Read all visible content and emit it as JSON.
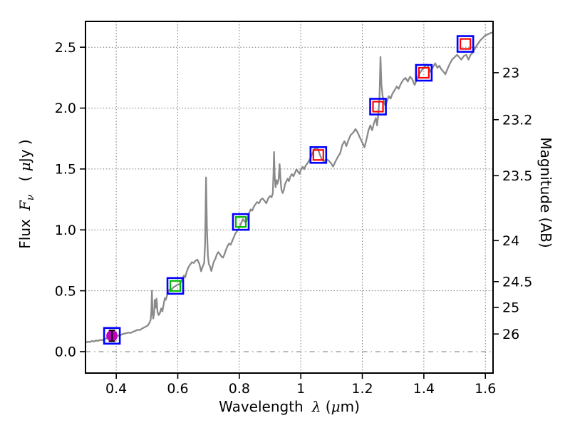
{
  "figure": {
    "background": "#ffffff"
  },
  "axes": {
    "xlabel": {
      "prefix": "Wavelength",
      "symbol": "λ",
      "unit_open": "(",
      "unit_mu": "μ",
      "unit_close": "m)"
    },
    "ylabel": {
      "prefix": "Flux",
      "symbol": "F",
      "subscript": "ν",
      "unit_open": "( ",
      "unit_mu": "μ",
      "unit_close": "Jy )"
    },
    "ylabel_right": "Magnitude (AB)",
    "x_ticks": [
      {
        "value": 0.4,
        "label": "0.4"
      },
      {
        "value": 0.6,
        "label": "0.6"
      },
      {
        "value": 0.8,
        "label": "0.8"
      },
      {
        "value": 1.0,
        "label": "1"
      },
      {
        "value": 1.2,
        "label": "1.2"
      },
      {
        "value": 1.4,
        "label": "1.4"
      },
      {
        "value": 1.6,
        "label": "1.6"
      }
    ],
    "y_ticks": [
      {
        "value": 0.0,
        "label": "0.0"
      },
      {
        "value": 0.5,
        "label": "0.5"
      },
      {
        "value": 1.0,
        "label": "1.0"
      },
      {
        "value": 1.5,
        "label": "1.5"
      },
      {
        "value": 2.0,
        "label": "2.0"
      },
      {
        "value": 2.5,
        "label": "2.5"
      }
    ],
    "right_ticks": [
      {
        "label": "23",
        "flux": 2.291
      },
      {
        "label": "23.2",
        "flux": 1.905
      },
      {
        "label": "23.5",
        "flux": 1.445
      },
      {
        "label": "24",
        "flux": 0.912
      },
      {
        "label": "24.5",
        "flux": 0.575
      },
      {
        "label": "25",
        "flux": 0.363
      },
      {
        "label": "26",
        "flux": 0.145
      }
    ]
  },
  "colors": {
    "spectrum": "#8a8a8a",
    "outer_square": "#0000ff",
    "green_marker": "#00bb00",
    "red_marker": "#ff0000",
    "magenta_marker": "#bb00bb",
    "errorbar": "#000000",
    "grid": "#777777",
    "frame": "#000000"
  },
  "chart_data": {
    "type": "line+scatter",
    "title": "",
    "xlabel": "Wavelength λ (μm)",
    "ylabel": "Flux Fν ( μJy )",
    "ylabel_right": "Magnitude (AB)",
    "xlim": [
      0.3,
      1.625
    ],
    "ylim": [
      -0.176,
      2.712
    ],
    "grid": "dotted",
    "zero_line_style": "dash-dot",
    "series": [
      {
        "name": "model-spectrum",
        "type": "line",
        "color": "#8a8a8a",
        "points": [
          [
            0.3,
            0.075
          ],
          [
            0.308,
            0.082
          ],
          [
            0.314,
            0.078
          ],
          [
            0.321,
            0.088
          ],
          [
            0.327,
            0.083
          ],
          [
            0.334,
            0.092
          ],
          [
            0.34,
            0.088
          ],
          [
            0.348,
            0.097
          ],
          [
            0.355,
            0.094
          ],
          [
            0.362,
            0.104
          ],
          [
            0.37,
            0.11
          ],
          [
            0.378,
            0.117
          ],
          [
            0.385,
            0.124
          ],
          [
            0.392,
            0.13
          ],
          [
            0.398,
            0.137
          ],
          [
            0.404,
            0.134
          ],
          [
            0.41,
            0.129
          ],
          [
            0.417,
            0.141
          ],
          [
            0.424,
            0.147
          ],
          [
            0.432,
            0.151
          ],
          [
            0.44,
            0.157
          ],
          [
            0.447,
            0.154
          ],
          [
            0.455,
            0.164
          ],
          [
            0.462,
            0.171
          ],
          [
            0.47,
            0.18
          ],
          [
            0.477,
            0.177
          ],
          [
            0.484,
            0.19
          ],
          [
            0.491,
            0.199
          ],
          [
            0.497,
            0.207
          ],
          [
            0.503,
            0.216
          ],
          [
            0.508,
            0.238
          ],
          [
            0.512,
            0.262
          ],
          [
            0.514,
            0.33
          ],
          [
            0.516,
            0.5
          ],
          [
            0.518,
            0.33
          ],
          [
            0.52,
            0.272
          ],
          [
            0.523,
            0.31
          ],
          [
            0.525,
            0.425
          ],
          [
            0.528,
            0.36
          ],
          [
            0.531,
            0.435
          ],
          [
            0.534,
            0.33
          ],
          [
            0.538,
            0.3
          ],
          [
            0.542,
            0.318
          ],
          [
            0.546,
            0.355
          ],
          [
            0.55,
            0.33
          ],
          [
            0.554,
            0.39
          ],
          [
            0.558,
            0.44
          ],
          [
            0.561,
            0.425
          ],
          [
            0.565,
            0.46
          ],
          [
            0.569,
            0.49
          ],
          [
            0.573,
            0.51
          ],
          [
            0.577,
            0.498
          ],
          [
            0.581,
            0.515
          ],
          [
            0.586,
            0.528
          ],
          [
            0.592,
            0.538
          ],
          [
            0.598,
            0.548
          ],
          [
            0.604,
            0.553
          ],
          [
            0.61,
            0.57
          ],
          [
            0.615,
            0.6
          ],
          [
            0.62,
            0.625
          ],
          [
            0.624,
            0.61
          ],
          [
            0.629,
            0.655
          ],
          [
            0.634,
            0.69
          ],
          [
            0.64,
            0.715
          ],
          [
            0.646,
            0.735
          ],
          [
            0.652,
            0.728
          ],
          [
            0.658,
            0.748
          ],
          [
            0.664,
            0.755
          ],
          [
            0.67,
            0.722
          ],
          [
            0.676,
            0.66
          ],
          [
            0.681,
            0.7
          ],
          [
            0.686,
            0.73
          ],
          [
            0.689,
            0.9
          ],
          [
            0.692,
            1.43
          ],
          [
            0.695,
            1.0
          ],
          [
            0.698,
            0.79
          ],
          [
            0.701,
            0.72
          ],
          [
            0.705,
            0.7
          ],
          [
            0.709,
            0.662
          ],
          [
            0.713,
            0.7
          ],
          [
            0.717,
            0.738
          ],
          [
            0.722,
            0.76
          ],
          [
            0.727,
            0.798
          ],
          [
            0.732,
            0.818
          ],
          [
            0.737,
            0.8
          ],
          [
            0.742,
            0.782
          ],
          [
            0.747,
            0.772
          ],
          [
            0.752,
            0.8
          ],
          [
            0.757,
            0.838
          ],
          [
            0.762,
            0.868
          ],
          [
            0.767,
            0.888
          ],
          [
            0.772,
            0.878
          ],
          [
            0.777,
            0.908
          ],
          [
            0.782,
            0.938
          ],
          [
            0.787,
            0.968
          ],
          [
            0.792,
            0.988
          ],
          [
            0.797,
            1.0
          ],
          [
            0.802,
            1.03
          ],
          [
            0.807,
            1.062
          ],
          [
            0.812,
            1.088
          ],
          [
            0.817,
            1.07
          ],
          [
            0.822,
            1.06
          ],
          [
            0.827,
            1.1
          ],
          [
            0.832,
            1.14
          ],
          [
            0.837,
            1.168
          ],
          [
            0.842,
            1.158
          ],
          [
            0.847,
            1.188
          ],
          [
            0.852,
            1.208
          ],
          [
            0.858,
            1.228
          ],
          [
            0.864,
            1.218
          ],
          [
            0.87,
            1.248
          ],
          [
            0.876,
            1.258
          ],
          [
            0.882,
            1.238
          ],
          [
            0.888,
            1.218
          ],
          [
            0.894,
            1.258
          ],
          [
            0.9,
            1.278
          ],
          [
            0.905,
            1.268
          ],
          [
            0.909,
            1.3
          ],
          [
            0.911,
            1.45
          ],
          [
            0.913,
            1.64
          ],
          [
            0.915,
            1.45
          ],
          [
            0.918,
            1.35
          ],
          [
            0.921,
            1.408
          ],
          [
            0.924,
            1.378
          ],
          [
            0.928,
            1.42
          ],
          [
            0.931,
            1.54
          ],
          [
            0.934,
            1.42
          ],
          [
            0.937,
            1.33
          ],
          [
            0.941,
            1.302
          ],
          [
            0.945,
            1.33
          ],
          [
            0.949,
            1.378
          ],
          [
            0.953,
            1.398
          ],
          [
            0.957,
            1.42
          ],
          [
            0.961,
            1.4
          ],
          [
            0.966,
            1.438
          ],
          [
            0.971,
            1.458
          ],
          [
            0.976,
            1.44
          ],
          [
            0.981,
            1.468
          ],
          [
            0.986,
            1.498
          ],
          [
            0.991,
            1.478
          ],
          [
            0.996,
            1.46
          ],
          [
            1.001,
            1.498
          ],
          [
            1.006,
            1.518
          ],
          [
            1.011,
            1.498
          ],
          [
            1.016,
            1.528
          ],
          [
            1.022,
            1.548
          ],
          [
            1.029,
            1.578
          ],
          [
            1.036,
            1.618
          ],
          [
            1.043,
            1.658
          ],
          [
            1.05,
            1.678
          ],
          [
            1.056,
            1.66
          ],
          [
            1.062,
            1.618
          ],
          [
            1.068,
            1.58
          ],
          [
            1.075,
            1.56
          ],
          [
            1.082,
            1.58
          ],
          [
            1.09,
            1.57
          ],
          [
            1.098,
            1.548
          ],
          [
            1.105,
            1.52
          ],
          [
            1.112,
            1.558
          ],
          [
            1.12,
            1.598
          ],
          [
            1.128,
            1.628
          ],
          [
            1.135,
            1.698
          ],
          [
            1.142,
            1.728
          ],
          [
            1.148,
            1.688
          ],
          [
            1.155,
            1.738
          ],
          [
            1.162,
            1.778
          ],
          [
            1.17,
            1.798
          ],
          [
            1.178,
            1.828
          ],
          [
            1.185,
            1.798
          ],
          [
            1.192,
            1.758
          ],
          [
            1.2,
            1.718
          ],
          [
            1.207,
            1.678
          ],
          [
            1.214,
            1.748
          ],
          [
            1.22,
            1.818
          ],
          [
            1.226,
            1.858
          ],
          [
            1.232,
            1.818
          ],
          [
            1.238,
            1.878
          ],
          [
            1.244,
            1.918
          ],
          [
            1.248,
            1.858
          ],
          [
            1.252,
            1.948
          ],
          [
            1.256,
            2.098
          ],
          [
            1.259,
            2.42
          ],
          [
            1.262,
            2.198
          ],
          [
            1.266,
            2.098
          ],
          [
            1.27,
            2.058
          ],
          [
            1.275,
            2.018
          ],
          [
            1.28,
            2.058
          ],
          [
            1.286,
            2.098
          ],
          [
            1.292,
            2.078
          ],
          [
            1.298,
            2.118
          ],
          [
            1.305,
            2.148
          ],
          [
            1.312,
            2.178
          ],
          [
            1.318,
            2.158
          ],
          [
            1.325,
            2.198
          ],
          [
            1.332,
            2.228
          ],
          [
            1.34,
            2.248
          ],
          [
            1.348,
            2.218
          ],
          [
            1.355,
            2.258
          ],
          [
            1.362,
            2.238
          ],
          [
            1.37,
            2.19
          ],
          [
            1.378,
            2.238
          ],
          [
            1.385,
            2.278
          ],
          [
            1.392,
            2.308
          ],
          [
            1.4,
            2.328
          ],
          [
            1.408,
            2.358
          ],
          [
            1.415,
            2.338
          ],
          [
            1.422,
            2.298
          ],
          [
            1.43,
            2.338
          ],
          [
            1.437,
            2.368
          ],
          [
            1.444,
            2.33
          ],
          [
            1.45,
            2.348
          ],
          [
            1.457,
            2.318
          ],
          [
            1.464,
            2.298
          ],
          [
            1.47,
            2.278
          ],
          [
            1.478,
            2.328
          ],
          [
            1.485,
            2.368
          ],
          [
            1.492,
            2.398
          ],
          [
            1.5,
            2.418
          ],
          [
            1.508,
            2.438
          ],
          [
            1.515,
            2.418
          ],
          [
            1.522,
            2.398
          ],
          [
            1.53,
            2.428
          ],
          [
            1.538,
            2.438
          ],
          [
            1.545,
            2.398
          ],
          [
            1.552,
            2.438
          ],
          [
            1.56,
            2.458
          ],
          [
            1.568,
            2.498
          ],
          [
            1.576,
            2.528
          ],
          [
            1.584,
            2.558
          ],
          [
            1.592,
            2.578
          ],
          [
            1.6,
            2.598
          ],
          [
            1.61,
            2.608
          ],
          [
            1.618,
            2.618
          ],
          [
            1.625,
            2.62
          ]
        ]
      },
      {
        "name": "photometry",
        "type": "scatter",
        "outline_color": "#0000ff",
        "points": [
          {
            "wavelength": 0.386,
            "flux": 0.13,
            "marker": "filled-circle",
            "color": "#bb00bb",
            "error": 0.045
          },
          {
            "wavelength": 0.592,
            "flux": 0.54,
            "marker": "open-square",
            "color": "#00bb00"
          },
          {
            "wavelength": 0.805,
            "flux": 1.065,
            "marker": "open-square",
            "color": "#00bb00"
          },
          {
            "wavelength": 1.057,
            "flux": 1.615,
            "marker": "open-square",
            "color": "#ff0000"
          },
          {
            "wavelength": 1.251,
            "flux": 2.012,
            "marker": "open-square",
            "color": "#ff0000"
          },
          {
            "wavelength": 1.4,
            "flux": 2.29,
            "marker": "open-square",
            "color": "#ff0000"
          },
          {
            "wavelength": 1.535,
            "flux": 2.527,
            "marker": "open-square",
            "color": "#ff0000"
          }
        ]
      }
    ]
  }
}
